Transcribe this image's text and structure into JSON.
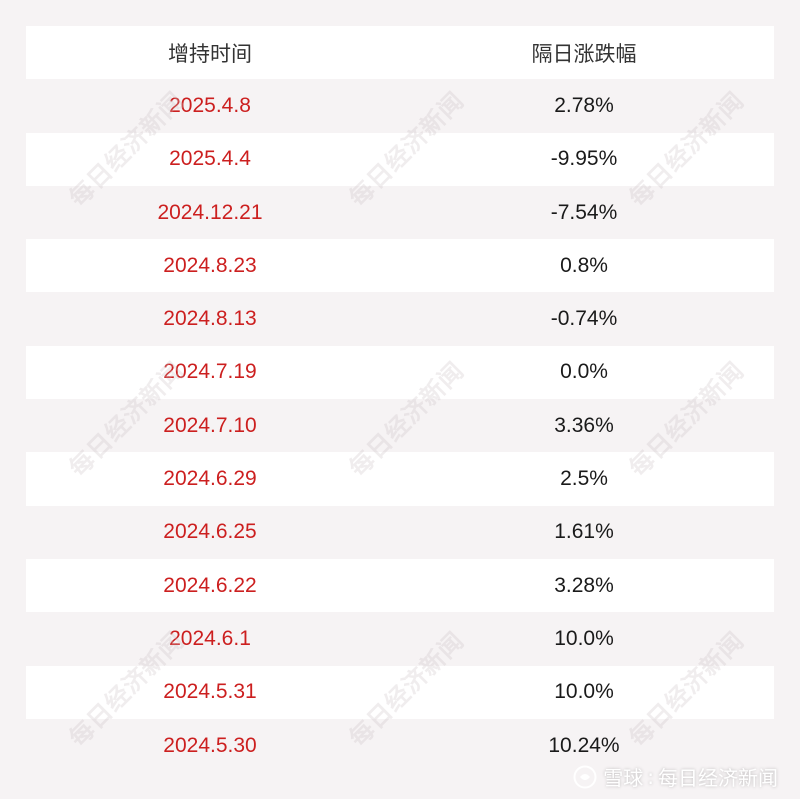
{
  "table": {
    "headers": [
      "增持时间",
      "隔日涨跌幅"
    ],
    "rows": [
      {
        "date": "2025.4.8",
        "change": "2.78%"
      },
      {
        "date": "2025.4.4",
        "change": "-9.95%"
      },
      {
        "date": "2024.12.21",
        "change": "-7.54%"
      },
      {
        "date": "2024.8.23",
        "change": "0.8%"
      },
      {
        "date": "2024.8.13",
        "change": "-0.74%"
      },
      {
        "date": "2024.7.19",
        "change": "0.0%"
      },
      {
        "date": "2024.7.10",
        "change": "3.36%"
      },
      {
        "date": "2024.6.29",
        "change": "2.5%"
      },
      {
        "date": "2024.6.25",
        "change": "1.61%"
      },
      {
        "date": "2024.6.22",
        "change": "3.28%"
      },
      {
        "date": "2024.6.1",
        "change": "10.0%"
      },
      {
        "date": "2024.5.31",
        "change": "10.0%"
      },
      {
        "date": "2024.5.30",
        "change": "10.24%"
      }
    ]
  },
  "watermark": {
    "text": "每日经济新闻"
  },
  "footer": {
    "platform": "雪球",
    "separator": ":",
    "author": "每日经济新闻"
  },
  "colors": {
    "date_text": "#cc1f1f",
    "value_text": "#1a1a1a",
    "header_text": "#333333",
    "row_white": "#ffffff",
    "row_grey": "#f6f3f4"
  }
}
